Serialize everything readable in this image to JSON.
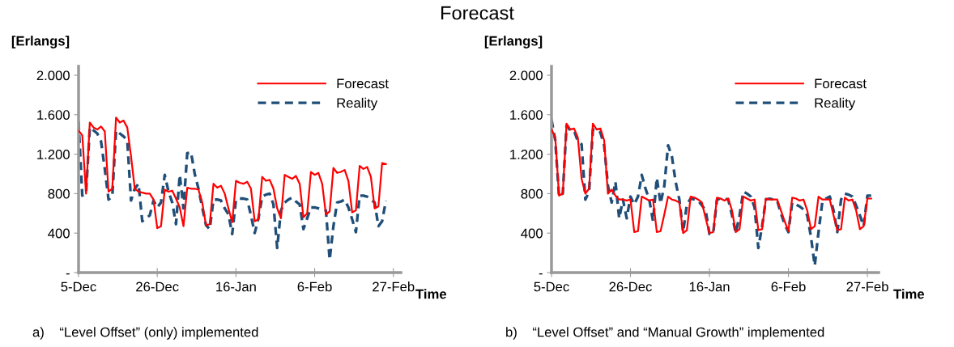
{
  "chart_data": [
    {
      "type": "other",
      "title": "Forecast"
    },
    {
      "type": "line",
      "ylabel": "[Erlangs]",
      "xlabel": "Time",
      "annotations": [
        "a)    “Level Offset” (only) implemented"
      ],
      "categories": [
        "5-Dec",
        null,
        null,
        null,
        null,
        null,
        null,
        null,
        null,
        null,
        null,
        null,
        null,
        null,
        null,
        null,
        null,
        null,
        null,
        null,
        null,
        "26-Dec",
        null,
        null,
        null,
        null,
        null,
        null,
        null,
        null,
        null,
        null,
        null,
        null,
        null,
        null,
        null,
        null,
        null,
        null,
        null,
        null,
        "16-Jan",
        null,
        null,
        null,
        null,
        null,
        null,
        null,
        null,
        null,
        null,
        null,
        null,
        null,
        null,
        null,
        null,
        null,
        null,
        null,
        null,
        "6-Feb",
        null,
        null,
        null,
        null,
        null,
        null,
        null,
        null,
        null,
        null,
        null,
        null,
        null,
        null,
        null,
        null,
        null,
        null,
        null,
        null,
        "27-Feb",
        null
      ],
      "ylim": [
        0,
        2090
      ],
      "yticks": [
        {
          "value": 0,
          "label": "-"
        },
        400,
        800,
        {
          "value": 1200,
          "label": "1.200"
        },
        {
          "value": 1600,
          "label": "1.600"
        },
        {
          "value": 2000,
          "label": "2.000"
        }
      ],
      "legend": "top right",
      "grid": false,
      "series": [
        {
          "name": "Forecast",
          "color": "#ff0000",
          "line_style": "solid",
          "values": [
            1440,
            1390,
            800,
            1520,
            1470,
            1450,
            1480,
            1430,
            820,
            850,
            1570,
            1520,
            1540,
            1470,
            1180,
            850,
            820,
            810,
            800,
            800,
            740,
            450,
            470,
            840,
            820,
            830,
            750,
            660,
            470,
            860,
            850,
            850,
            840,
            710,
            480,
            490,
            900,
            860,
            880,
            800,
            650,
            510,
            930,
            910,
            900,
            920,
            850,
            520,
            540,
            970,
            930,
            940,
            850,
            650,
            550,
            990,
            970,
            950,
            980,
            900,
            560,
            600,
            1020,
            990,
            1010,
            900,
            590,
            620,
            1060,
            1010,
            1020,
            1040,
            930,
            610,
            630,
            1080,
            1050,
            1070,
            970,
            650,
            670,
            1110,
            1100,
            null,
            null,
            null
          ]
        },
        {
          "name": "Reality",
          "color": "#1f4e79",
          "line_style": "dashed",
          "values": [
            1530,
            780,
            800,
            1470,
            1440,
            1410,
            1330,
            1050,
            740,
            770,
            1440,
            1410,
            1380,
            1340,
            730,
            850,
            900,
            520,
            550,
            580,
            730,
            660,
            710,
            990,
            820,
            710,
            490,
            990,
            650,
            1210,
            1220,
            1000,
            850,
            660,
            480,
            440,
            740,
            740,
            730,
            650,
            590,
            390,
            740,
            750,
            750,
            740,
            580,
            400,
            550,
            770,
            790,
            800,
            690,
            250,
            630,
            710,
            740,
            760,
            720,
            690,
            440,
            550,
            660,
            660,
            650,
            640,
            630,
            130,
            470,
            710,
            720,
            740,
            660,
            540,
            410,
            780,
            780,
            770,
            740,
            710,
            470,
            520,
            730,
            null,
            null,
            null
          ]
        }
      ]
    },
    {
      "type": "line",
      "ylabel": "[Erlangs]",
      "xlabel": "Time",
      "annotations": [
        "b)    “Level Offset” and “Manual Growth” implemented"
      ],
      "categories": [
        "5-Dec",
        null,
        null,
        null,
        null,
        null,
        null,
        null,
        null,
        null,
        null,
        null,
        null,
        null,
        null,
        null,
        null,
        null,
        null,
        null,
        null,
        "26-Dec",
        null,
        null,
        null,
        null,
        null,
        null,
        null,
        null,
        null,
        null,
        null,
        null,
        null,
        null,
        null,
        null,
        null,
        null,
        null,
        null,
        "16-Jan",
        null,
        null,
        null,
        null,
        null,
        null,
        null,
        null,
        null,
        null,
        null,
        null,
        null,
        null,
        null,
        null,
        null,
        null,
        null,
        null,
        "6-Feb",
        null,
        null,
        null,
        null,
        null,
        null,
        null,
        null,
        null,
        null,
        null,
        null,
        null,
        null,
        null,
        null,
        null,
        null,
        null,
        null,
        "27-Feb",
        null,
        null
      ],
      "ylim": [
        0,
        2090
      ],
      "yticks": [
        {
          "value": 0,
          "label": "-"
        },
        400,
        800,
        {
          "value": 1200,
          "label": "1.200"
        },
        {
          "value": 1600,
          "label": "1.600"
        },
        {
          "value": 2000,
          "label": "2.000"
        }
      ],
      "legend": "top right",
      "grid": false,
      "series": [
        {
          "name": "Forecast",
          "color": "#ff0000",
          "line_style": "solid",
          "values": [
            1450,
            1370,
            780,
            800,
            1510,
            1450,
            1460,
            1370,
            950,
            800,
            850,
            1510,
            1450,
            1460,
            1340,
            800,
            840,
            780,
            740,
            740,
            730,
            740,
            410,
            420,
            770,
            750,
            730,
            740,
            410,
            420,
            590,
            770,
            740,
            730,
            710,
            400,
            430,
            770,
            760,
            740,
            710,
            550,
            400,
            410,
            760,
            750,
            730,
            750,
            630,
            410,
            440,
            770,
            750,
            730,
            740,
            430,
            440,
            750,
            740,
            740,
            740,
            630,
            520,
            420,
            760,
            750,
            730,
            740,
            630,
            440,
            470,
            770,
            740,
            740,
            740,
            580,
            430,
            440,
            760,
            730,
            740,
            630,
            440,
            470,
            750,
            750,
            null
          ]
        },
        {
          "name": "Reality",
          "color": "#1f4e79",
          "line_style": "dashed",
          "values": [
            1550,
            1340,
            770,
            800,
            1490,
            1440,
            1440,
            1330,
            1300,
            740,
            820,
            1450,
            1450,
            1420,
            1290,
            880,
            710,
            920,
            550,
            740,
            550,
            770,
            690,
            770,
            990,
            850,
            740,
            520,
            960,
            700,
            880,
            1290,
            1180,
            920,
            740,
            410,
            690,
            750,
            740,
            730,
            680,
            630,
            390,
            400,
            740,
            750,
            750,
            740,
            580,
            400,
            580,
            820,
            800,
            770,
            660,
            250,
            470,
            740,
            750,
            740,
            730,
            600,
            490,
            410,
            710,
            690,
            670,
            640,
            580,
            360,
            70,
            410,
            710,
            750,
            770,
            630,
            410,
            740,
            800,
            790,
            770,
            680,
            580,
            470,
            780,
            780,
            null
          ]
        }
      ]
    }
  ]
}
